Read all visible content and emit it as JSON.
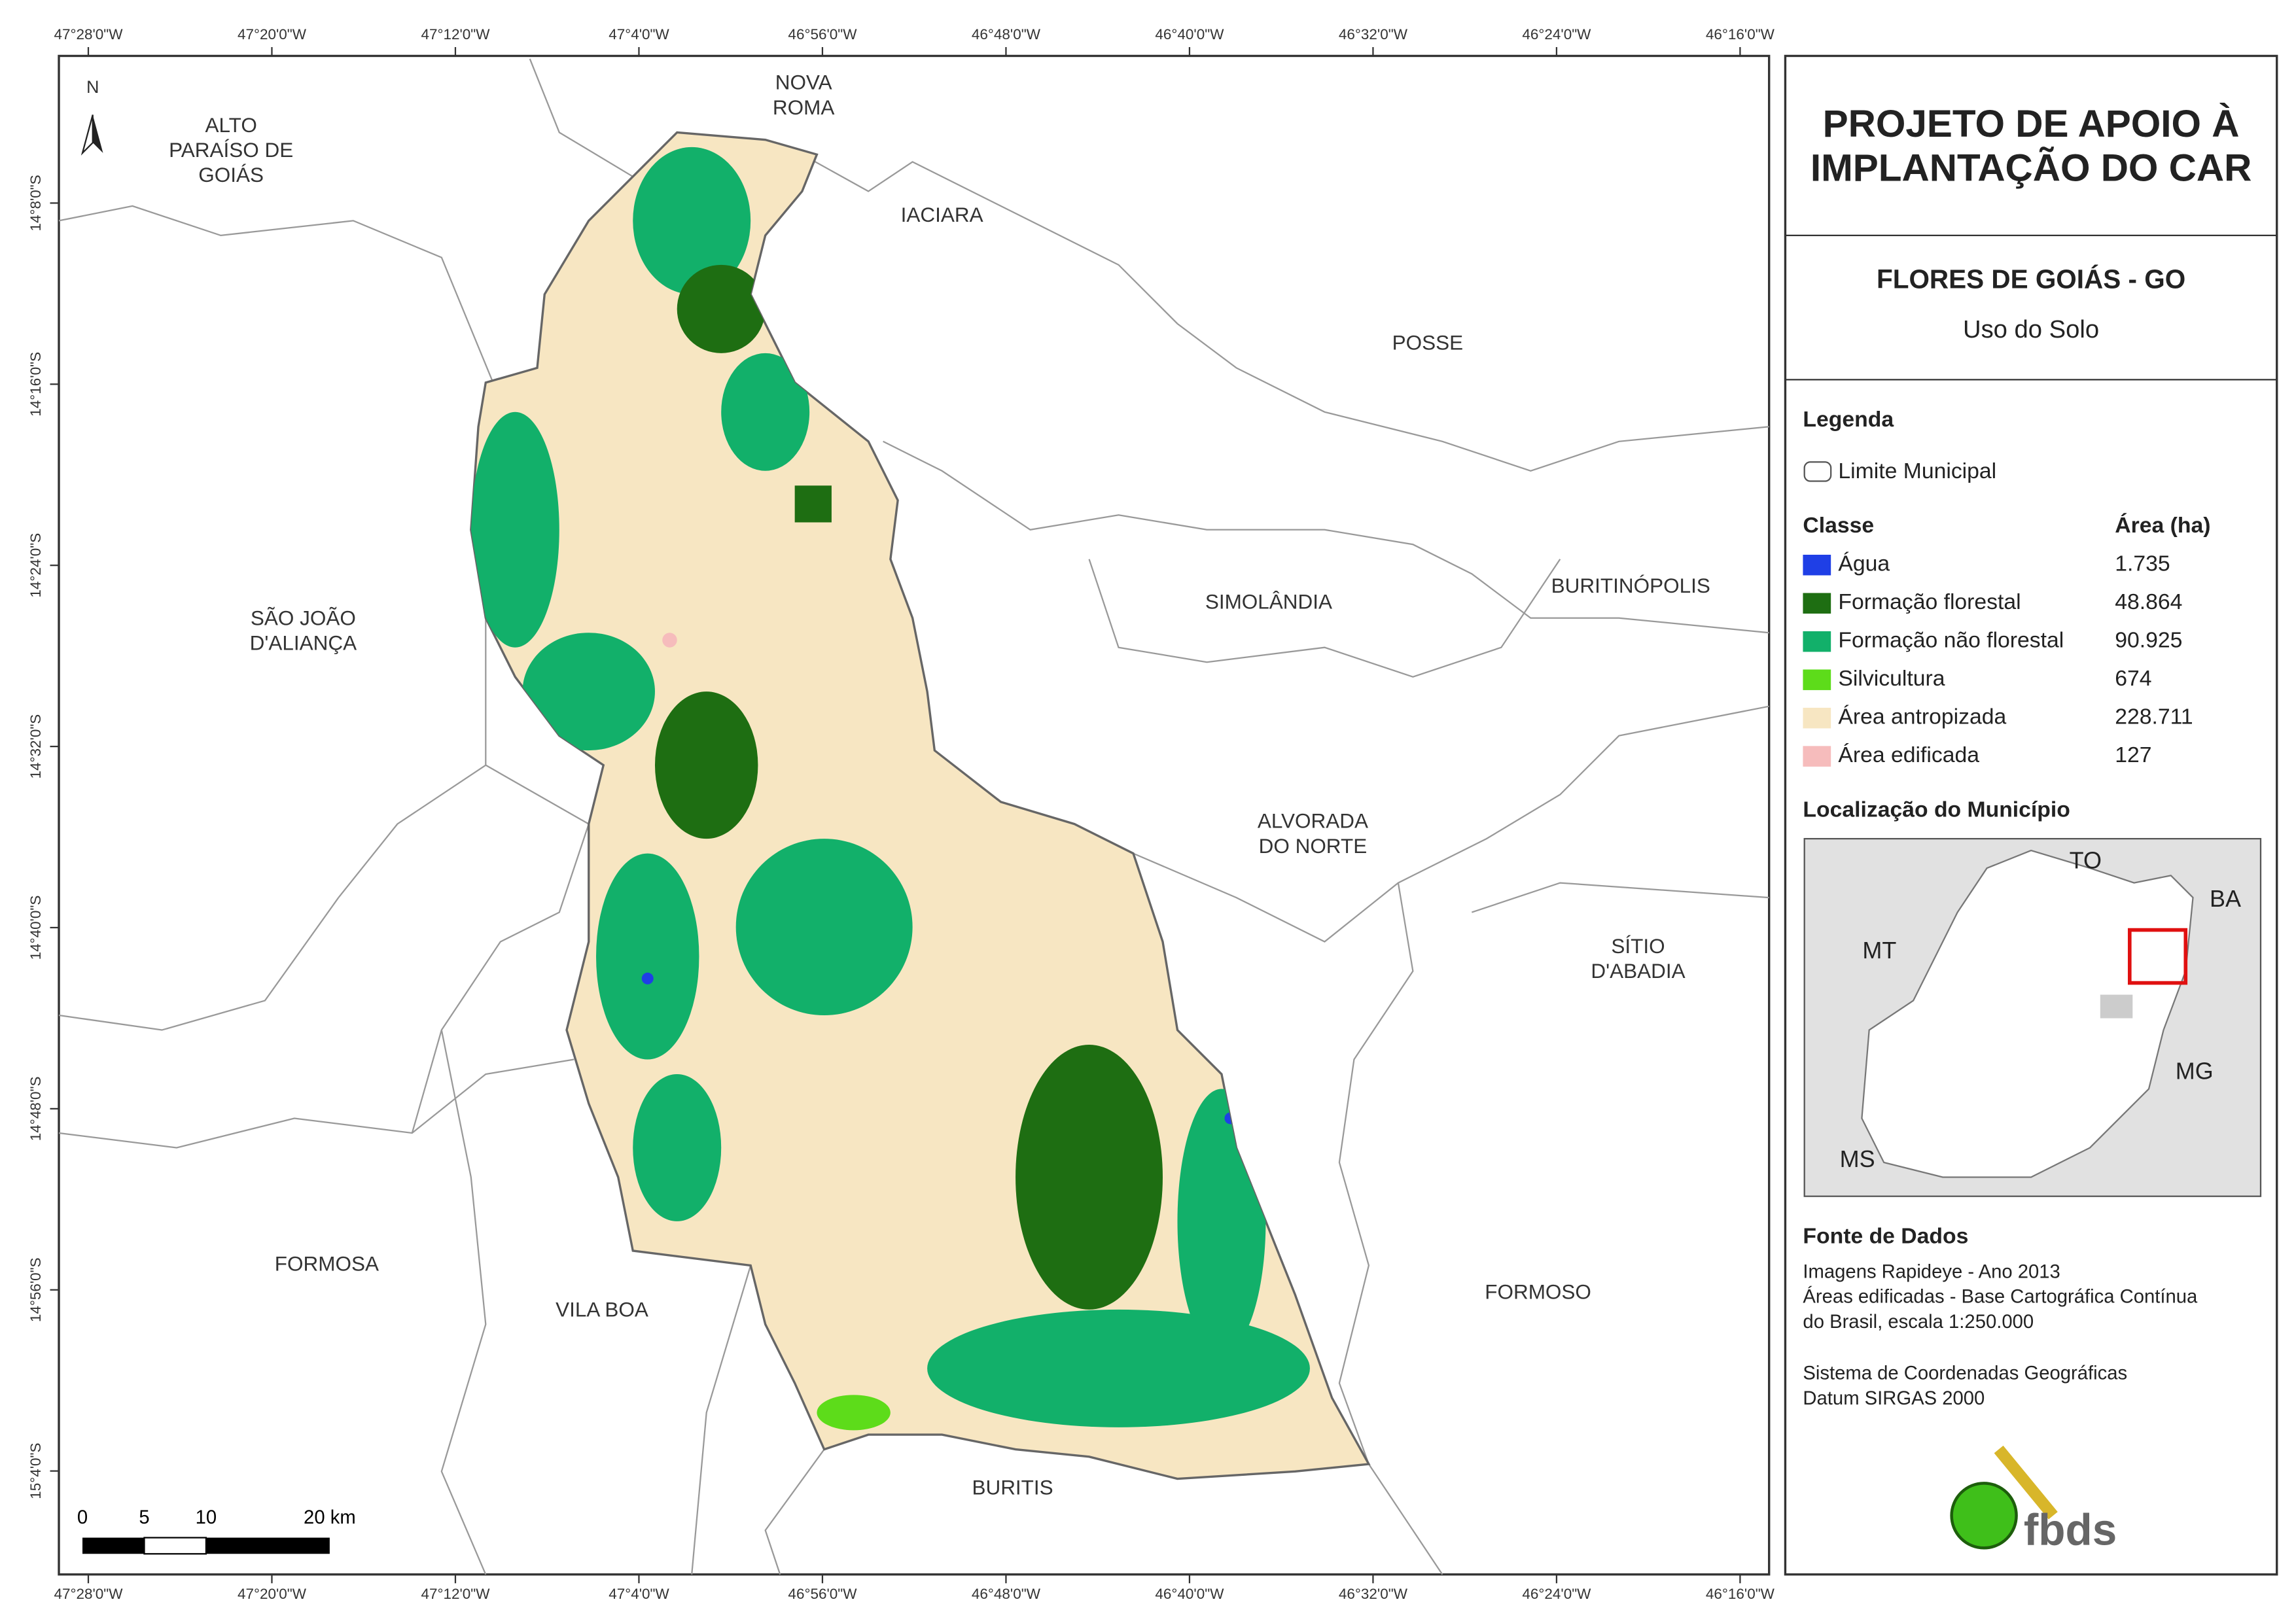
{
  "map": {
    "north": "N",
    "lon_ticks": [
      "47°28'0\"W",
      "47°20'0\"W",
      "47°12'0\"W",
      "47°4'0\"W",
      "46°56'0\"W",
      "46°48'0\"W",
      "46°40'0\"W",
      "46°32'0\"W",
      "46°24'0\"W",
      "46°16'0\"W"
    ],
    "lat_ticks": [
      "14°8'0\"S",
      "14°16'0\"S",
      "14°24'0\"S",
      "14°32'0\"S",
      "14°40'0\"S",
      "14°48'0\"S",
      "14°56'0\"S",
      "15°4'0\"S"
    ],
    "places": [
      {
        "lines": [
          "ALTO",
          "PARAÍSO DE",
          "GOIÁS"
        ]
      },
      {
        "lines": [
          "NOVA",
          "ROMA"
        ]
      },
      {
        "lines": [
          "IACIARA"
        ]
      },
      {
        "lines": [
          "POSSE"
        ]
      },
      {
        "lines": [
          "SIMOLÂNDIA"
        ]
      },
      {
        "lines": [
          "BURITINÓPOLIS"
        ]
      },
      {
        "lines": [
          "SÃO JOÃO",
          "D'ALIANÇA"
        ]
      },
      {
        "lines": [
          "ALVORADA",
          "DO NORTE"
        ]
      },
      {
        "lines": [
          "SÍTIO",
          "D'ABADIA"
        ]
      },
      {
        "lines": [
          "FORMOSA"
        ]
      },
      {
        "lines": [
          "VILA BOA"
        ]
      },
      {
        "lines": [
          "FORMOSO"
        ]
      },
      {
        "lines": [
          "BURITIS"
        ]
      }
    ],
    "scale_labels": [
      "0",
      "5",
      "10",
      "20 km"
    ]
  },
  "header": {
    "title_lines": [
      "PROJETO DE APOIO À",
      "IMPLANTAÇÃO DO CAR"
    ],
    "municipality": "FLORES DE GOIÁS - GO",
    "subtitle": "Uso do Solo"
  },
  "legend": {
    "heading": "Legenda",
    "boundary": "Limite Municipal",
    "class_header": "Classe",
    "area_header": "Área (ha)",
    "classes": [
      {
        "name": "Água",
        "area": "1.735",
        "color": "#1f3fe6"
      },
      {
        "name": "Formação florestal",
        "area": "48.864",
        "color": "#1e6e12"
      },
      {
        "name": "Formação não florestal",
        "area": "90.925",
        "color": "#12b06a"
      },
      {
        "name": "Silvicultura",
        "area": "674",
        "color": "#5ddc1a"
      },
      {
        "name": "Área antropizada",
        "area": "228.711",
        "color": "#f7e6c2"
      },
      {
        "name": "Área edificada",
        "area": "127",
        "color": "#f6bcbc"
      }
    ]
  },
  "location": {
    "heading": "Localização do Município",
    "labels": [
      "TO",
      "BA",
      "MT",
      "MG",
      "MS"
    ]
  },
  "sources": {
    "heading": "Fonte de Dados",
    "lines": [
      "Imagens Rapideye - Ano 2013",
      "Áreas edificadas - Base Cartográfica Contínua",
      "do Brasil, escala 1:250.000",
      "Sistema de Coordenadas Geográficas",
      "Datum SIRGAS 2000"
    ]
  },
  "logo": "fbds"
}
